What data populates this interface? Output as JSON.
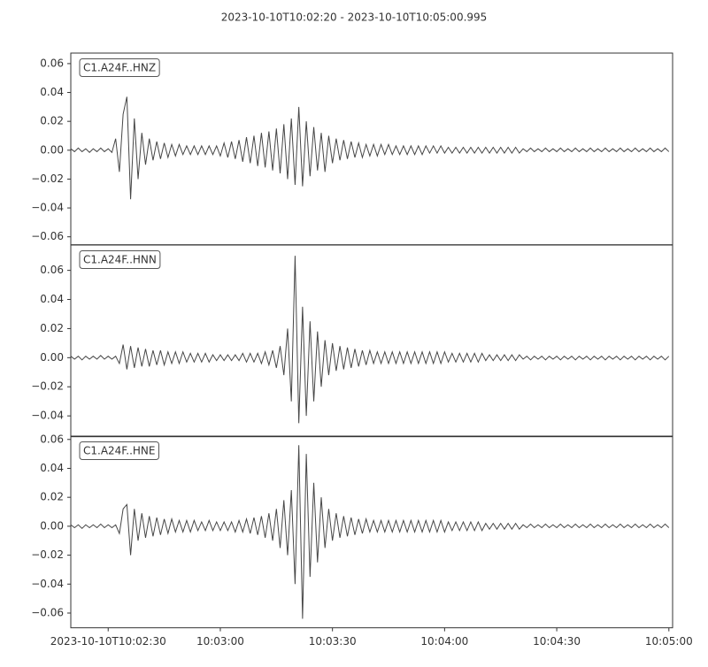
{
  "chart_data": {
    "type": "seismogram",
    "title": "2023-10-10T10:02:20  -  2023-10-10T10:05:00.995",
    "xlim": [
      "2023-10-10T10:02:20",
      "2023-10-10T10:05:00.995"
    ],
    "xticks": [
      "2023-10-10T10:02:30",
      {
        "value": "2023-10-10T10:03:00",
        "label": "10:03:00"
      },
      {
        "value": "2023-10-10T10:03:30",
        "label": "10:03:30"
      },
      {
        "value": "2023-10-10T10:04:00",
        "label": "10:04:00"
      },
      {
        "value": "2023-10-10T10:04:30",
        "label": "10:04:30"
      },
      {
        "value": "2023-10-10T10:05:00",
        "label": "10:05:00"
      }
    ],
    "x": [
      "2023-10-10T10:02:20",
      "2023-10-10T10:02:21",
      "2023-10-10T10:02:22",
      "2023-10-10T10:02:23",
      "2023-10-10T10:02:24",
      "2023-10-10T10:02:25",
      "2023-10-10T10:02:26",
      "2023-10-10T10:02:27",
      "2023-10-10T10:02:28",
      "2023-10-10T10:02:29",
      "2023-10-10T10:02:30",
      "2023-10-10T10:02:31",
      "2023-10-10T10:02:32",
      "2023-10-10T10:02:33",
      "2023-10-10T10:02:34",
      "2023-10-10T10:02:35",
      "2023-10-10T10:02:36",
      "2023-10-10T10:02:37",
      "2023-10-10T10:02:38",
      "2023-10-10T10:02:39",
      "2023-10-10T10:02:40",
      "2023-10-10T10:02:41",
      "2023-10-10T10:02:42",
      "2023-10-10T10:02:43",
      "2023-10-10T10:02:44",
      "2023-10-10T10:02:45",
      "2023-10-10T10:02:46",
      "2023-10-10T10:02:47",
      "2023-10-10T10:02:48",
      "2023-10-10T10:02:49",
      "2023-10-10T10:02:50",
      "2023-10-10T10:02:51",
      "2023-10-10T10:02:52",
      "2023-10-10T10:02:53",
      "2023-10-10T10:02:54",
      "2023-10-10T10:02:55",
      "2023-10-10T10:02:56",
      "2023-10-10T10:02:57",
      "2023-10-10T10:02:58",
      "2023-10-10T10:02:59",
      "2023-10-10T10:03:00",
      "2023-10-10T10:03:01",
      "2023-10-10T10:03:02",
      "2023-10-10T10:03:03",
      "2023-10-10T10:03:04",
      "2023-10-10T10:03:05",
      "2023-10-10T10:03:06",
      "2023-10-10T10:03:07",
      "2023-10-10T10:03:08",
      "2023-10-10T10:03:09",
      "2023-10-10T10:03:10",
      "2023-10-10T10:03:11",
      "2023-10-10T10:03:12",
      "2023-10-10T10:03:13",
      "2023-10-10T10:03:14",
      "2023-10-10T10:03:15",
      "2023-10-10T10:03:16",
      "2023-10-10T10:03:17",
      "2023-10-10T10:03:18",
      "2023-10-10T10:03:19",
      "2023-10-10T10:03:20",
      "2023-10-10T10:03:21",
      "2023-10-10T10:03:22",
      "2023-10-10T10:03:23",
      "2023-10-10T10:03:24",
      "2023-10-10T10:03:25",
      "2023-10-10T10:03:26",
      "2023-10-10T10:03:27",
      "2023-10-10T10:03:28",
      "2023-10-10T10:03:29",
      "2023-10-10T10:03:30",
      "2023-10-10T10:03:31",
      "2023-10-10T10:03:32",
      "2023-10-10T10:03:33",
      "2023-10-10T10:03:34",
      "2023-10-10T10:03:35",
      "2023-10-10T10:03:36",
      "2023-10-10T10:03:37",
      "2023-10-10T10:03:38",
      "2023-10-10T10:03:39",
      "2023-10-10T10:03:40",
      "2023-10-10T10:03:41",
      "2023-10-10T10:03:42",
      "2023-10-10T10:03:43",
      "2023-10-10T10:03:44",
      "2023-10-10T10:03:45",
      "2023-10-10T10:03:46",
      "2023-10-10T10:03:47",
      "2023-10-10T10:03:48",
      "2023-10-10T10:03:49",
      "2023-10-10T10:03:50",
      "2023-10-10T10:03:51",
      "2023-10-10T10:03:52",
      "2023-10-10T10:03:53",
      "2023-10-10T10:03:54",
      "2023-10-10T10:03:55",
      "2023-10-10T10:03:56",
      "2023-10-10T10:03:57",
      "2023-10-10T10:03:58",
      "2023-10-10T10:03:59",
      "2023-10-10T10:04:00",
      "2023-10-10T10:04:01",
      "2023-10-10T10:04:02",
      "2023-10-10T10:04:03",
      "2023-10-10T10:04:04",
      "2023-10-10T10:04:05",
      "2023-10-10T10:04:06",
      "2023-10-10T10:04:07",
      "2023-10-10T10:04:08",
      "2023-10-10T10:04:09",
      "2023-10-10T10:04:10",
      "2023-10-10T10:04:11",
      "2023-10-10T10:04:12",
      "2023-10-10T10:04:13",
      "2023-10-10T10:04:14",
      "2023-10-10T10:04:15",
      "2023-10-10T10:04:16",
      "2023-10-10T10:04:17",
      "2023-10-10T10:04:18",
      "2023-10-10T10:04:19",
      "2023-10-10T10:04:20",
      "2023-10-10T10:04:21",
      "2023-10-10T10:04:22",
      "2023-10-10T10:04:23",
      "2023-10-10T10:04:24",
      "2023-10-10T10:04:25",
      "2023-10-10T10:04:26",
      "2023-10-10T10:04:27",
      "2023-10-10T10:04:28",
      "2023-10-10T10:04:29",
      "2023-10-10T10:04:30",
      "2023-10-10T10:04:31",
      "2023-10-10T10:04:32",
      "2023-10-10T10:04:33",
      "2023-10-10T10:04:34",
      "2023-10-10T10:04:35",
      "2023-10-10T10:04:36",
      "2023-10-10T10:04:37",
      "2023-10-10T10:04:38",
      "2023-10-10T10:04:39",
      "2023-10-10T10:04:40",
      "2023-10-10T10:04:41",
      "2023-10-10T10:04:42",
      "2023-10-10T10:04:43",
      "2023-10-10T10:04:44",
      "2023-10-10T10:04:45",
      "2023-10-10T10:04:46",
      "2023-10-10T10:04:47",
      "2023-10-10T10:04:48",
      "2023-10-10T10:04:49",
      "2023-10-10T10:04:50",
      "2023-10-10T10:04:51",
      "2023-10-10T10:04:52",
      "2023-10-10T10:04:53",
      "2023-10-10T10:04:54",
      "2023-10-10T10:04:55",
      "2023-10-10T10:04:56",
      "2023-10-10T10:04:57",
      "2023-10-10T10:04:58",
      "2023-10-10T10:04:59",
      "2023-10-10T10:05:00"
    ],
    "series": [
      {
        "name": "C1.A24F..HNZ",
        "color": "#464646",
        "ylim": [
          -0.0655,
          0.0673
        ],
        "yticks": [
          0.06,
          0.04,
          0.02,
          {
            "value": 0,
            "label": "0.00"
          },
          {
            "value": -0.02,
            "label": "−0.02"
          },
          {
            "value": -0.04,
            "label": "−0.04"
          },
          {
            "value": -0.06,
            "label": "−0.06"
          }
        ],
        "values": [
          0.001,
          -0.001,
          0.0015,
          -0.001,
          0.001,
          -0.0015,
          0.001,
          -0.001,
          0.0015,
          -0.001,
          0.001,
          -0.0015,
          0.008,
          -0.015,
          0.025,
          0.037,
          -0.034,
          0.022,
          -0.02,
          0.012,
          -0.01,
          0.008,
          -0.007,
          0.006,
          -0.006,
          0.005,
          -0.005,
          0.004,
          -0.004,
          0.004,
          -0.003,
          0.003,
          -0.003,
          0.003,
          -0.003,
          0.003,
          -0.003,
          0.003,
          -0.003,
          0.003,
          -0.004,
          0.005,
          -0.005,
          0.006,
          -0.006,
          0.007,
          -0.008,
          0.009,
          -0.009,
          0.01,
          -0.011,
          0.012,
          -0.012,
          0.013,
          -0.014,
          0.015,
          -0.016,
          0.018,
          -0.02,
          0.022,
          -0.024,
          0.03,
          -0.025,
          0.02,
          -0.018,
          0.016,
          -0.014,
          0.012,
          -0.015,
          0.01,
          -0.009,
          0.008,
          -0.007,
          0.007,
          -0.006,
          0.006,
          -0.005,
          0.005,
          -0.005,
          0.004,
          -0.004,
          0.004,
          -0.004,
          0.004,
          -0.003,
          0.004,
          -0.003,
          0.003,
          -0.003,
          0.003,
          -0.003,
          0.003,
          -0.003,
          0.003,
          -0.003,
          0.003,
          -0.002,
          0.003,
          -0.002,
          0.003,
          -0.002,
          0.002,
          -0.002,
          0.002,
          -0.002,
          0.002,
          -0.002,
          0.002,
          -0.002,
          0.002,
          -0.002,
          0.002,
          -0.002,
          0.002,
          -0.002,
          0.002,
          -0.002,
          0.002,
          -0.002,
          0.002,
          -0.002,
          0.001,
          -0.001,
          0.0015,
          -0.001,
          0.001,
          -0.001,
          0.0015,
          -0.001,
          0.001,
          -0.001,
          0.0015,
          -0.001,
          0.001,
          -0.001,
          0.0015,
          -0.001,
          0.001,
          -0.001,
          0.0015,
          -0.001,
          0.001,
          -0.001,
          0.0015,
          -0.001,
          0.001,
          -0.001,
          0.0015,
          -0.001,
          0.001,
          -0.001,
          0.0015,
          -0.001,
          0.001,
          -0.001,
          0.0015,
          -0.001,
          0.001,
          -0.001,
          0.0015,
          -0.001
        ]
      },
      {
        "name": "C1.A24F..HNN",
        "color": "#464646",
        "ylim": [
          -0.0543,
          0.0774
        ],
        "yticks": [
          0.06,
          0.04,
          0.02,
          {
            "value": 0,
            "label": "0.00"
          },
          {
            "value": -0.02,
            "label": "−0.02"
          },
          {
            "value": -0.04,
            "label": "−0.04"
          }
        ],
        "values": [
          0.001,
          -0.001,
          0.001,
          -0.0015,
          0.001,
          -0.001,
          0.001,
          -0.001,
          0.0015,
          -0.001,
          0.001,
          -0.001,
          0.001,
          -0.004,
          0.009,
          -0.008,
          0.008,
          -0.007,
          0.007,
          -0.006,
          0.006,
          -0.006,
          0.005,
          -0.005,
          0.005,
          -0.005,
          0.004,
          -0.004,
          0.004,
          -0.004,
          0.004,
          -0.003,
          0.003,
          -0.003,
          0.003,
          -0.003,
          0.003,
          -0.003,
          0.002,
          -0.002,
          0.002,
          -0.002,
          0.002,
          -0.002,
          0.002,
          -0.002,
          0.003,
          -0.003,
          0.003,
          -0.003,
          0.003,
          -0.004,
          0.004,
          -0.005,
          0.005,
          -0.007,
          0.008,
          -0.012,
          0.02,
          -0.03,
          0.07,
          -0.045,
          0.035,
          -0.04,
          0.025,
          -0.03,
          0.018,
          -0.02,
          0.012,
          -0.012,
          0.01,
          -0.009,
          0.008,
          -0.008,
          0.007,
          -0.007,
          0.006,
          -0.006,
          0.005,
          -0.005,
          0.005,
          -0.004,
          0.004,
          -0.004,
          0.004,
          -0.004,
          0.004,
          -0.004,
          0.004,
          -0.004,
          0.004,
          -0.004,
          0.004,
          -0.004,
          0.004,
          -0.004,
          0.004,
          -0.004,
          0.004,
          -0.004,
          0.004,
          -0.003,
          0.003,
          -0.003,
          0.003,
          -0.003,
          0.003,
          -0.003,
          0.003,
          -0.003,
          0.003,
          -0.002,
          0.002,
          -0.002,
          0.002,
          -0.002,
          0.002,
          -0.002,
          0.002,
          -0.002,
          0.002,
          -0.001,
          0.001,
          -0.0015,
          0.001,
          -0.001,
          0.001,
          -0.0015,
          0.001,
          -0.001,
          0.001,
          -0.0015,
          0.001,
          -0.001,
          0.001,
          -0.0015,
          0.001,
          -0.001,
          0.001,
          -0.0015,
          0.001,
          -0.001,
          0.001,
          -0.0015,
          0.001,
          -0.001,
          0.001,
          -0.0015,
          0.001,
          -0.001,
          0.001,
          -0.0015,
          0.001,
          -0.001,
          0.001,
          -0.0015,
          0.001,
          -0.001,
          0.001,
          -0.0015,
          0.001
        ]
      },
      {
        "name": "C1.A24F..HNE",
        "color": "#464646",
        "ylim": [
          -0.0702,
          0.0623
        ],
        "yticks": [
          0.06,
          0.04,
          0.02,
          {
            "value": 0,
            "label": "0.00"
          },
          {
            "value": -0.02,
            "label": "−0.02"
          },
          {
            "value": -0.04,
            "label": "−0.04"
          },
          {
            "value": -0.06,
            "label": "−0.06"
          }
        ],
        "values": [
          0.001,
          -0.001,
          0.001,
          -0.0015,
          0.001,
          -0.001,
          0.001,
          -0.001,
          0.0015,
          -0.001,
          0.001,
          -0.001,
          0.001,
          -0.005,
          0.012,
          0.015,
          -0.02,
          0.012,
          -0.01,
          0.009,
          -0.008,
          0.007,
          -0.007,
          0.006,
          -0.006,
          0.005,
          -0.005,
          0.005,
          -0.004,
          0.004,
          -0.004,
          0.004,
          -0.004,
          0.004,
          -0.003,
          0.003,
          -0.003,
          0.004,
          -0.003,
          0.003,
          -0.003,
          0.003,
          -0.003,
          0.003,
          -0.004,
          0.004,
          -0.004,
          0.005,
          -0.005,
          0.006,
          -0.006,
          0.007,
          -0.008,
          0.009,
          -0.01,
          0.012,
          -0.015,
          0.018,
          -0.02,
          0.025,
          -0.04,
          0.056,
          -0.064,
          0.05,
          -0.035,
          0.03,
          -0.025,
          0.02,
          -0.015,
          0.012,
          -0.01,
          0.009,
          -0.008,
          0.007,
          -0.007,
          0.006,
          -0.006,
          0.005,
          -0.005,
          0.005,
          -0.004,
          0.004,
          -0.004,
          0.004,
          -0.004,
          0.004,
          -0.004,
          0.004,
          -0.004,
          0.004,
          -0.004,
          0.004,
          -0.004,
          0.004,
          -0.004,
          0.004,
          -0.004,
          0.004,
          -0.004,
          0.004,
          -0.004,
          0.003,
          -0.003,
          0.003,
          -0.003,
          0.003,
          -0.003,
          0.003,
          -0.003,
          0.003,
          -0.003,
          0.002,
          -0.002,
          0.002,
          -0.002,
          0.002,
          -0.002,
          0.002,
          -0.002,
          0.002,
          -0.002,
          0.001,
          -0.001,
          0.0015,
          -0.001,
          0.001,
          -0.001,
          0.0015,
          -0.001,
          0.001,
          -0.001,
          0.0015,
          -0.001,
          0.001,
          -0.001,
          0.0015,
          -0.001,
          0.001,
          -0.001,
          0.0015,
          -0.001,
          0.001,
          -0.001,
          0.0015,
          -0.001,
          0.001,
          -0.001,
          0.0015,
          -0.001,
          0.001,
          -0.001,
          0.0015,
          -0.001,
          0.001,
          -0.001,
          0.0015,
          -0.001,
          0.001,
          -0.001,
          0.0015,
          -0.001
        ]
      }
    ]
  }
}
